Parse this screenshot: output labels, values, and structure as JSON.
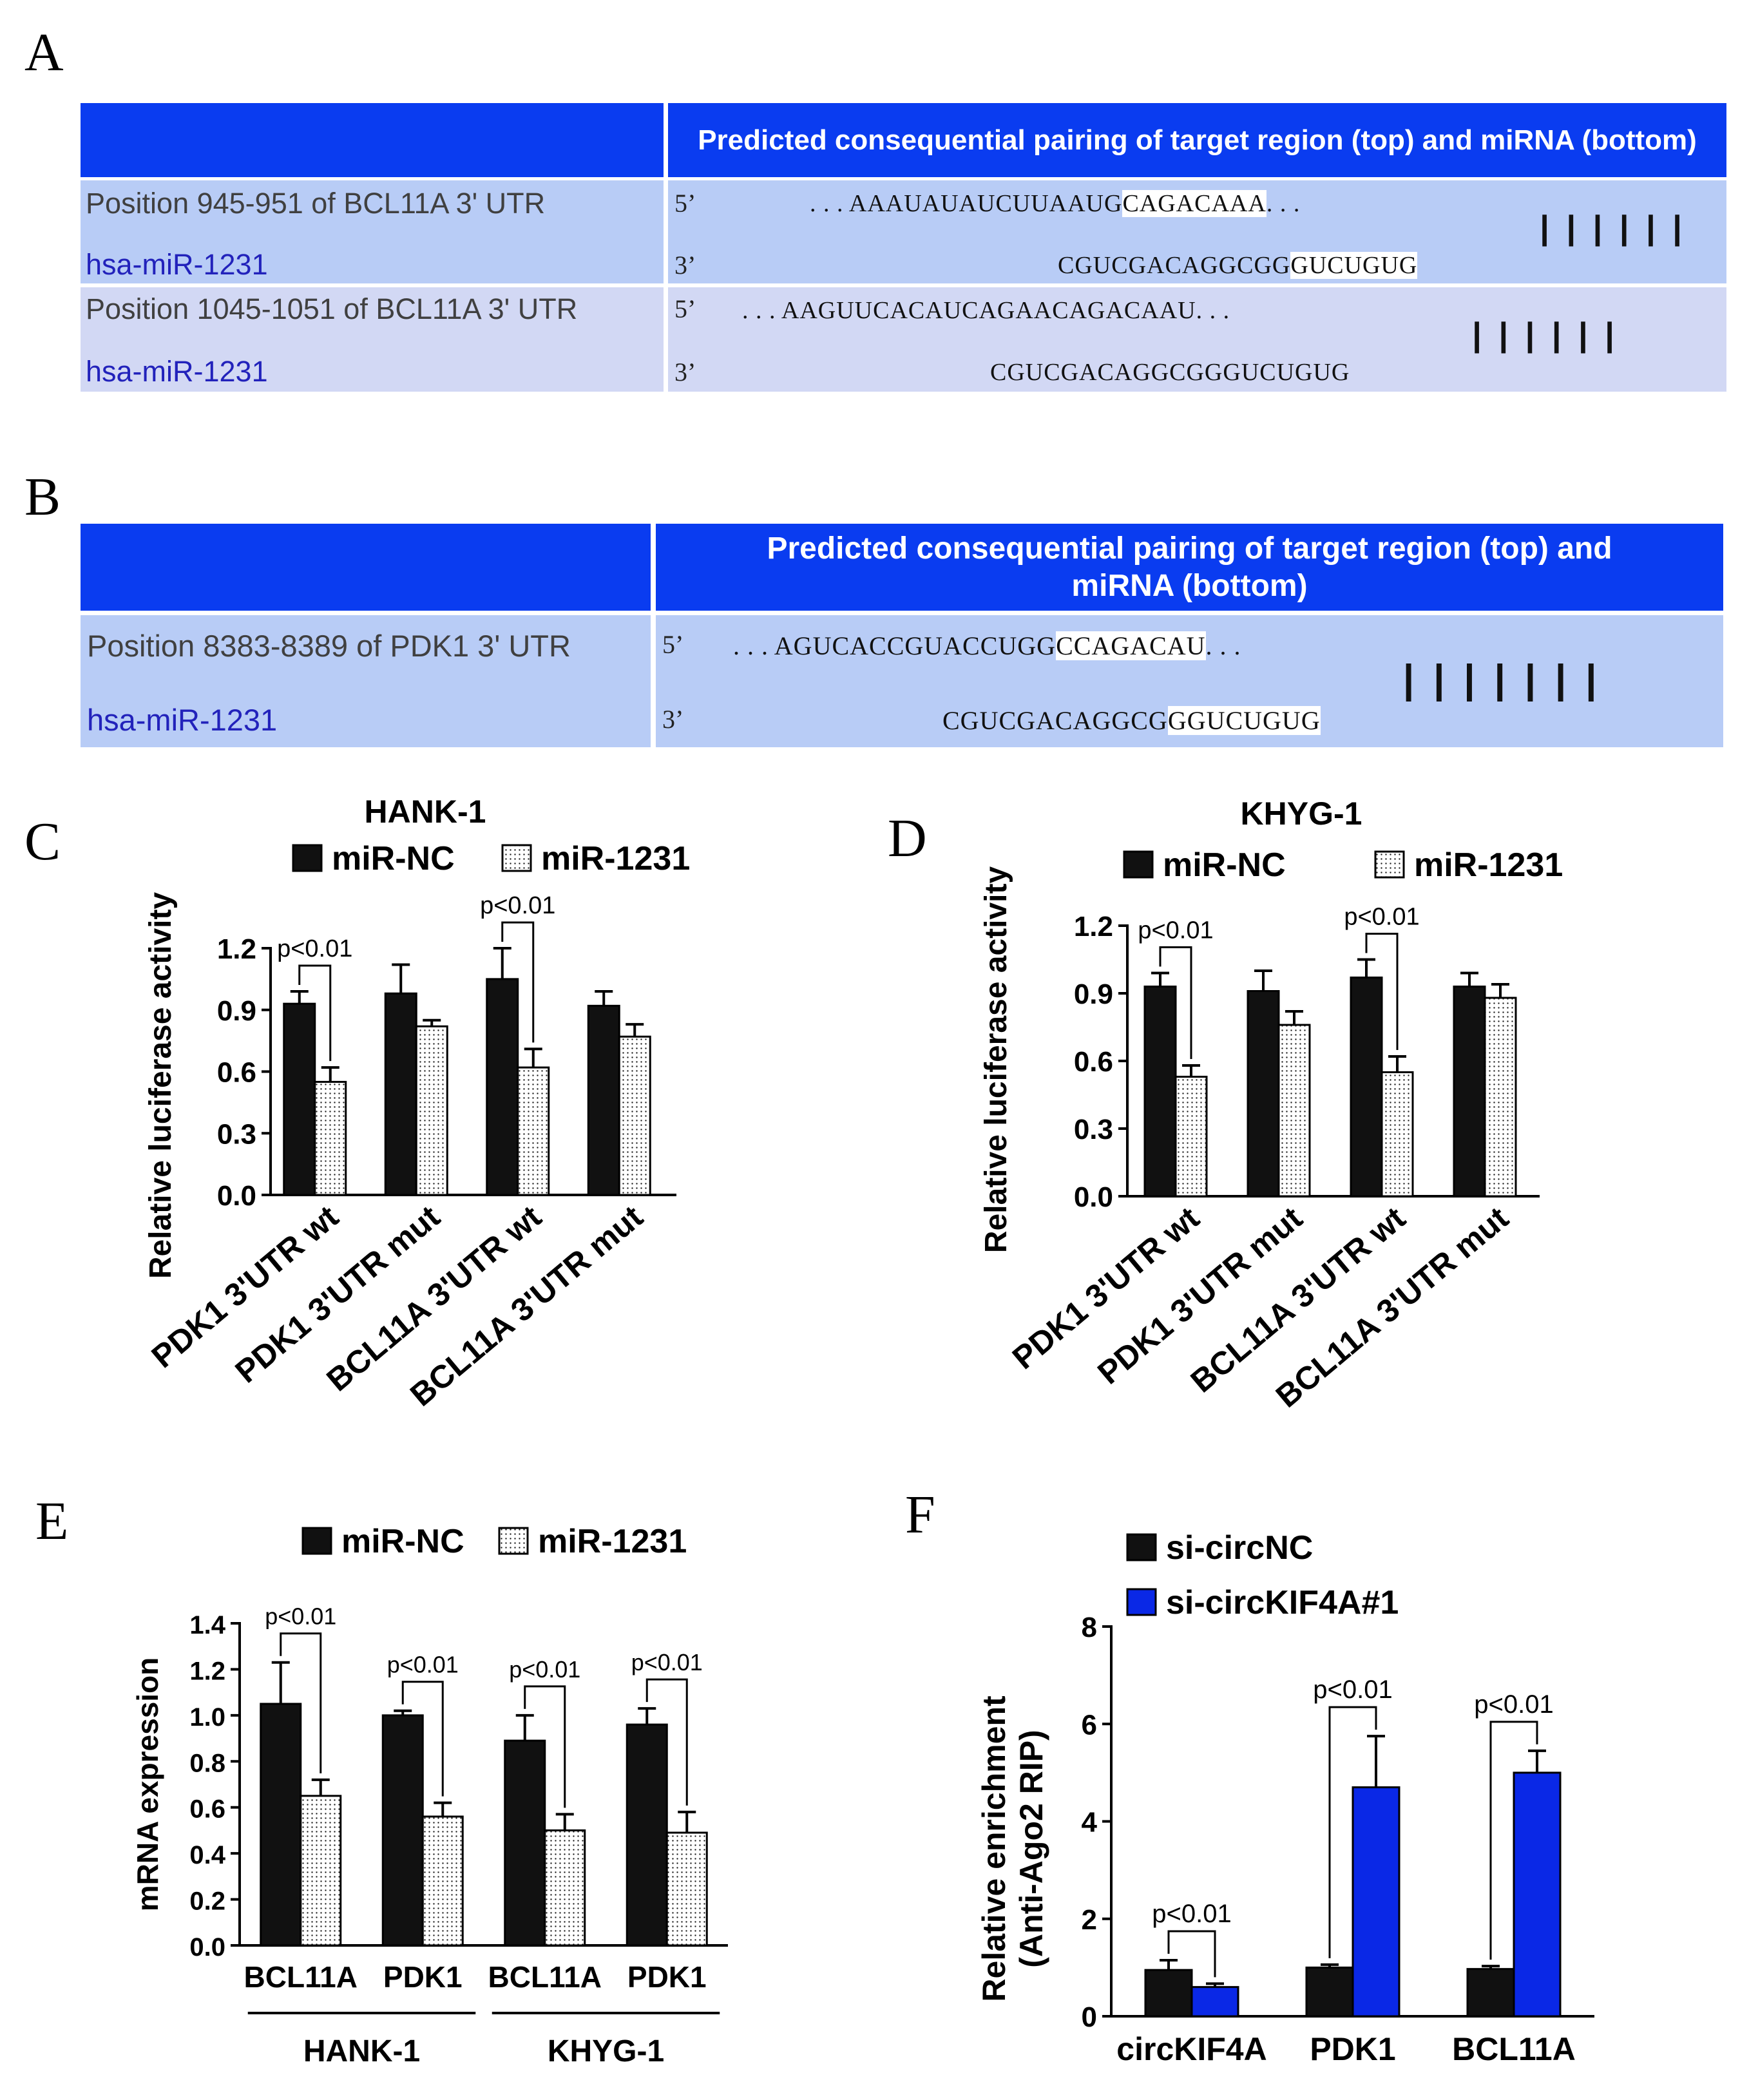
{
  "panels": {
    "A": "A",
    "B": "B",
    "C": "C",
    "D": "D",
    "E": "E",
    "F": "F"
  },
  "tableA": {
    "header": "Predicted consequential pairing of target region (top) and miRNA (bottom)",
    "rows": [
      {
        "position": "Position 945-951 of BCL11A 3' UTR",
        "mirna": "hsa-miR-1231",
        "end5": "5’",
        "end3": "3’",
        "target_pre": ". . . AAAUAUAUCUUAAUG",
        "target_hl": "CAGACAAA",
        "target_post": ". . .",
        "mirna_pre": "CGUCGACAGGCGG",
        "mirna_hl": "GUCUGUG",
        "pairs": "||||||"
      },
      {
        "position": "Position 1045-1051 of BCL11A 3' UTR",
        "mirna": "hsa-miR-1231",
        "end5": "5’",
        "end3": "3’",
        "target_pre": ". . . AAGUUCACAUCAGAA",
        "target_hl": "CAGACAAU",
        "target_post": ". . .",
        "mirna_pre": "CGUCGACAGGCGG",
        "mirna_hl": "GUCUGUG",
        "pairs": "||||||"
      }
    ]
  },
  "tableB": {
    "header": "Predicted consequential pairing of target region (top) and miRNA (bottom)",
    "rows": [
      {
        "position": "Position 8383-8389 of PDK1 3' UTR",
        "mirna": "hsa-miR-1231",
        "end5": "5’",
        "end3": "3’",
        "target_pre": ". . . AGUCACCGUACCUGG",
        "target_hl": "CCAGACAU",
        "target_post": ". . .",
        "mirna_pre": "CGUCGACAGGCG",
        "mirna_hl": "GGUCUGUG",
        "pairs": "|||||||"
      }
    ]
  },
  "chart_data": [
    {
      "panel": "C",
      "type": "bar",
      "title": "HANK-1",
      "ylabel": "Relative luciferase activity",
      "ylim": [
        0,
        1.2
      ],
      "yticks": [
        "0.0",
        "0.3",
        "0.6",
        "0.9",
        "1.2"
      ],
      "categories": [
        "PDK1 3'UTR wt",
        "PDK1 3'UTR mut",
        "BCL11A 3'UTR wt",
        "BCL11A 3'UTR mut"
      ],
      "series": [
        {
          "name": "miR-NC",
          "values": [
            0.93,
            0.98,
            1.05,
            0.92
          ],
          "errors": [
            0.06,
            0.14,
            0.15,
            0.07
          ],
          "color": "#111111"
        },
        {
          "name": "miR-1231",
          "values": [
            0.55,
            0.82,
            0.62,
            0.77
          ],
          "errors": [
            0.07,
            0.03,
            0.09,
            0.06
          ],
          "color": "dots"
        }
      ],
      "annotations": [
        {
          "category": 0,
          "text": "p<0.01"
        },
        {
          "category": 2,
          "text": "p<0.01"
        }
      ]
    },
    {
      "panel": "D",
      "type": "bar",
      "title": "KHYG-1",
      "ylabel": "Relative luciferase activity",
      "ylim": [
        0,
        1.2
      ],
      "yticks": [
        "0.0",
        "0.3",
        "0.6",
        "0.9",
        "1.2"
      ],
      "categories": [
        "PDK1 3'UTR wt",
        "PDK1 3'UTR mut",
        "BCL11A 3'UTR wt",
        "BCL11A 3'UTR mut"
      ],
      "series": [
        {
          "name": "miR-NC",
          "values": [
            0.93,
            0.91,
            0.97,
            0.93
          ],
          "errors": [
            0.06,
            0.09,
            0.08,
            0.06
          ],
          "color": "#111111"
        },
        {
          "name": "miR-1231",
          "values": [
            0.53,
            0.76,
            0.55,
            0.88
          ],
          "errors": [
            0.05,
            0.06,
            0.07,
            0.06
          ],
          "color": "dots"
        }
      ],
      "annotations": [
        {
          "category": 0,
          "text": "p<0.01"
        },
        {
          "category": 2,
          "text": "p<0.01"
        }
      ]
    },
    {
      "panel": "E",
      "type": "bar",
      "title": "",
      "ylabel": "mRNA expression",
      "ylim": [
        0,
        1.4
      ],
      "yticks": [
        "0.0",
        "0.2",
        "0.4",
        "0.6",
        "0.8",
        "1.0",
        "1.2",
        "1.4"
      ],
      "categories": [
        "BCL11A",
        "PDK1",
        "BCL11A",
        "PDK1"
      ],
      "groups": [
        {
          "label": "HANK-1",
          "from": 0,
          "to": 1
        },
        {
          "label": "KHYG-1",
          "from": 2,
          "to": 3
        }
      ],
      "series": [
        {
          "name": "miR-NC",
          "values": [
            1.05,
            1.0,
            0.89,
            0.96
          ],
          "errors": [
            0.18,
            0.02,
            0.11,
            0.07
          ],
          "color": "#111111"
        },
        {
          "name": "miR-1231",
          "values": [
            0.65,
            0.56,
            0.5,
            0.49
          ],
          "errors": [
            0.07,
            0.06,
            0.07,
            0.09
          ],
          "color": "dots"
        }
      ],
      "annotations": [
        {
          "category": 0,
          "text": "p<0.01"
        },
        {
          "category": 1,
          "text": "p<0.01"
        },
        {
          "category": 2,
          "text": "p<0.01"
        },
        {
          "category": 3,
          "text": "p<0.01"
        }
      ]
    },
    {
      "panel": "F",
      "type": "bar",
      "title": "",
      "ylabel": "Relative enrichment\n(Anti-Ago2 RIP)",
      "ylabel_lines": [
        "Relative enrichment",
        "(Anti-Ago2 RIP)"
      ],
      "ylim": [
        0,
        8
      ],
      "yticks": [
        "0",
        "2",
        "4",
        "6",
        "8"
      ],
      "categories": [
        "circKIF4A",
        "PDK1",
        "BCL11A"
      ],
      "series": [
        {
          "name": "si-circNC",
          "values": [
            0.95,
            1.0,
            0.97
          ],
          "errors": [
            0.2,
            0.06,
            0.06
          ],
          "color": "#111111"
        },
        {
          "name": "si-circKIF4A#1",
          "values": [
            0.6,
            4.7,
            5.0
          ],
          "errors": [
            0.07,
            1.05,
            0.45
          ],
          "color": "#0a28e6"
        }
      ],
      "annotations": [
        {
          "category": 0,
          "text": "p<0.01"
        },
        {
          "category": 1,
          "text": "p<0.01"
        },
        {
          "category": 2,
          "text": "p<0.01"
        }
      ]
    }
  ]
}
